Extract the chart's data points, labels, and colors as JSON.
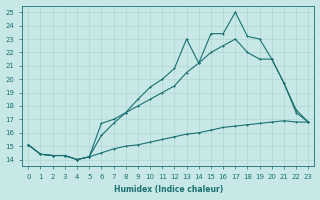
{
  "xlabel": "Humidex (Indice chaleur)",
  "bg_color": "#c8e8e8",
  "grid_color": "#b0d4d4",
  "line_color": "#1a7070",
  "xlim": [
    -0.5,
    23.5
  ],
  "ylim": [
    13.5,
    25.5
  ],
  "yticks": [
    14,
    15,
    16,
    17,
    18,
    19,
    20,
    21,
    22,
    23,
    24,
    25
  ],
  "xticks": [
    0,
    1,
    2,
    3,
    4,
    5,
    6,
    7,
    8,
    9,
    10,
    11,
    12,
    13,
    14,
    15,
    16,
    17,
    18,
    19,
    20,
    21,
    22,
    23
  ],
  "line1_x": [
    0,
    1,
    2,
    3,
    4,
    5,
    6,
    7,
    8,
    9,
    10,
    11,
    12,
    13,
    14,
    15,
    16,
    17,
    18,
    19,
    20,
    21,
    22,
    23
  ],
  "line1_y": [
    15.1,
    14.4,
    14.3,
    14.3,
    14.0,
    14.2,
    16.7,
    17.0,
    17.5,
    18.5,
    19.4,
    20.0,
    20.8,
    23.0,
    21.2,
    23.4,
    23.4,
    25.0,
    23.2,
    23.0,
    21.5,
    19.7,
    17.7,
    16.8
  ],
  "line2_x": [
    0,
    1,
    2,
    3,
    4,
    5,
    6,
    7,
    8,
    9,
    10,
    11,
    12,
    13,
    14,
    15,
    16,
    17,
    18,
    19,
    20,
    21,
    22,
    23
  ],
  "line2_y": [
    15.1,
    14.4,
    14.3,
    14.3,
    14.0,
    14.2,
    15.8,
    16.7,
    17.5,
    18.0,
    18.5,
    19.0,
    19.5,
    20.5,
    21.2,
    22.0,
    22.5,
    23.0,
    22.0,
    21.5,
    21.5,
    19.7,
    17.5,
    16.8
  ],
  "line3_x": [
    0,
    1,
    2,
    3,
    4,
    5,
    6,
    7,
    8,
    9,
    10,
    11,
    12,
    13,
    14,
    15,
    16,
    17,
    18,
    19,
    20,
    21,
    22,
    23
  ],
  "line3_y": [
    15.1,
    14.4,
    14.3,
    14.3,
    14.0,
    14.2,
    14.5,
    14.8,
    15.0,
    15.1,
    15.3,
    15.5,
    15.7,
    15.9,
    16.0,
    16.2,
    16.4,
    16.5,
    16.6,
    16.7,
    16.8,
    16.9,
    16.8,
    16.8
  ]
}
